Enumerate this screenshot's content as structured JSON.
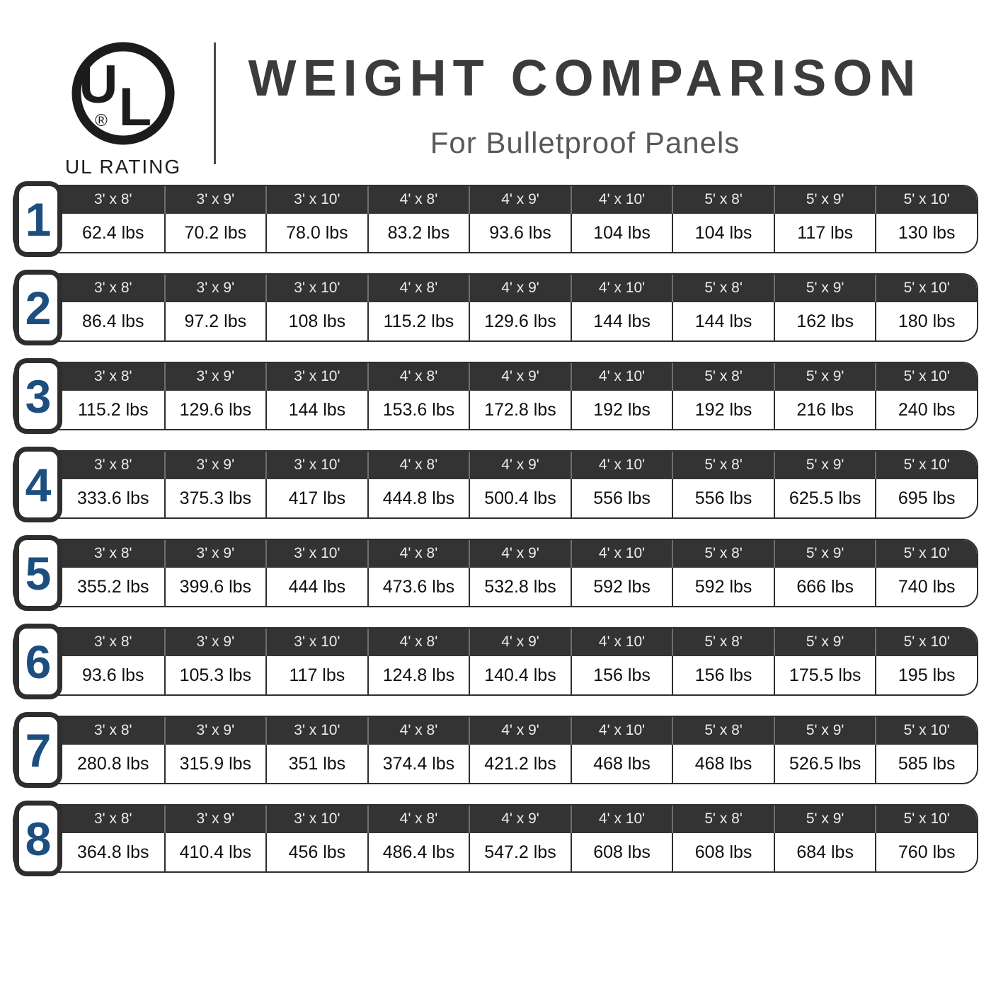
{
  "header": {
    "logo_letters_u": "U",
    "logo_letters_l": "L",
    "registered_mark": "®",
    "logo_caption": "UL RATING",
    "title": "WEIGHT COMPARISON",
    "subtitle": "For Bulletproof Panels"
  },
  "colors": {
    "dark_charcoal": "#333333",
    "border_dark": "#2e2e2e",
    "rating_blue": "#1c4e80",
    "title_gray": "#3b3b3b",
    "subtitle_gray": "#595959"
  },
  "table": {
    "columns": [
      "3' x 8'",
      "3' x 9'",
      "3' x 10'",
      "4' x 8'",
      "4' x 9'",
      "4' x 10'",
      "5' x 8'",
      "5' x 9'",
      "5' x 10'"
    ],
    "rows": [
      {
        "rating": "1",
        "values": [
          "62.4 lbs",
          "70.2 lbs",
          "78.0 lbs",
          "83.2 lbs",
          "93.6 lbs",
          "104 lbs",
          "104 lbs",
          "117 lbs",
          "130 lbs"
        ]
      },
      {
        "rating": "2",
        "values": [
          "86.4 lbs",
          "97.2 lbs",
          "108 lbs",
          "115.2 lbs",
          "129.6 lbs",
          "144 lbs",
          "144 lbs",
          "162 lbs",
          "180 lbs"
        ]
      },
      {
        "rating": "3",
        "values": [
          "115.2 lbs",
          "129.6 lbs",
          "144 lbs",
          "153.6 lbs",
          "172.8 lbs",
          "192 lbs",
          "192 lbs",
          "216 lbs",
          "240 lbs"
        ]
      },
      {
        "rating": "4",
        "values": [
          "333.6 lbs",
          "375.3 lbs",
          "417 lbs",
          "444.8 lbs",
          "500.4 lbs",
          "556 lbs",
          "556 lbs",
          "625.5 lbs",
          "695 lbs"
        ]
      },
      {
        "rating": "5",
        "values": [
          "355.2 lbs",
          "399.6 lbs",
          "444 lbs",
          "473.6 lbs",
          "532.8 lbs",
          "592 lbs",
          "592 lbs",
          "666 lbs",
          "740 lbs"
        ]
      },
      {
        "rating": "6",
        "values": [
          "93.6 lbs",
          "105.3 lbs",
          "117 lbs",
          "124.8 lbs",
          "140.4 lbs",
          "156 lbs",
          "156 lbs",
          "175.5 lbs",
          "195 lbs"
        ]
      },
      {
        "rating": "7",
        "values": [
          "280.8 lbs",
          "315.9 lbs",
          "351 lbs",
          "374.4 lbs",
          "421.2 lbs",
          "468 lbs",
          "468 lbs",
          "526.5 lbs",
          "585 lbs"
        ]
      },
      {
        "rating": "8",
        "values": [
          "364.8 lbs",
          "410.4 lbs",
          "456 lbs",
          "486.4 lbs",
          "547.2 lbs",
          "608 lbs",
          "608 lbs",
          "684 lbs",
          "760 lbs"
        ]
      }
    ]
  },
  "chart_data": {
    "type": "table",
    "title": "WEIGHT COMPARISON",
    "subtitle": "For Bulletproof Panels",
    "row_axis_label": "UL RATING",
    "columns": [
      "3' x 8'",
      "3' x 9'",
      "3' x 10'",
      "4' x 8'",
      "4' x 9'",
      "4' x 10'",
      "5' x 8'",
      "5' x 9'",
      "5' x 10'"
    ],
    "unit": "lbs",
    "rows": [
      {
        "ul_rating": 1,
        "weights_lbs": [
          62.4,
          70.2,
          78.0,
          83.2,
          93.6,
          104,
          104,
          117,
          130
        ]
      },
      {
        "ul_rating": 2,
        "weights_lbs": [
          86.4,
          97.2,
          108,
          115.2,
          129.6,
          144,
          144,
          162,
          180
        ]
      },
      {
        "ul_rating": 3,
        "weights_lbs": [
          115.2,
          129.6,
          144,
          153.6,
          172.8,
          192,
          192,
          216,
          240
        ]
      },
      {
        "ul_rating": 4,
        "weights_lbs": [
          333.6,
          375.3,
          417,
          444.8,
          500.4,
          556,
          556,
          625.5,
          695
        ]
      },
      {
        "ul_rating": 5,
        "weights_lbs": [
          355.2,
          399.6,
          444,
          473.6,
          532.8,
          592,
          592,
          666,
          740
        ]
      },
      {
        "ul_rating": 6,
        "weights_lbs": [
          93.6,
          105.3,
          117,
          124.8,
          140.4,
          156,
          156,
          175.5,
          195
        ]
      },
      {
        "ul_rating": 7,
        "weights_lbs": [
          280.8,
          315.9,
          351,
          374.4,
          421.2,
          468,
          468,
          526.5,
          585
        ]
      },
      {
        "ul_rating": 8,
        "weights_lbs": [
          364.8,
          410.4,
          456,
          486.4,
          547.2,
          608,
          608,
          684,
          760
        ]
      }
    ]
  }
}
